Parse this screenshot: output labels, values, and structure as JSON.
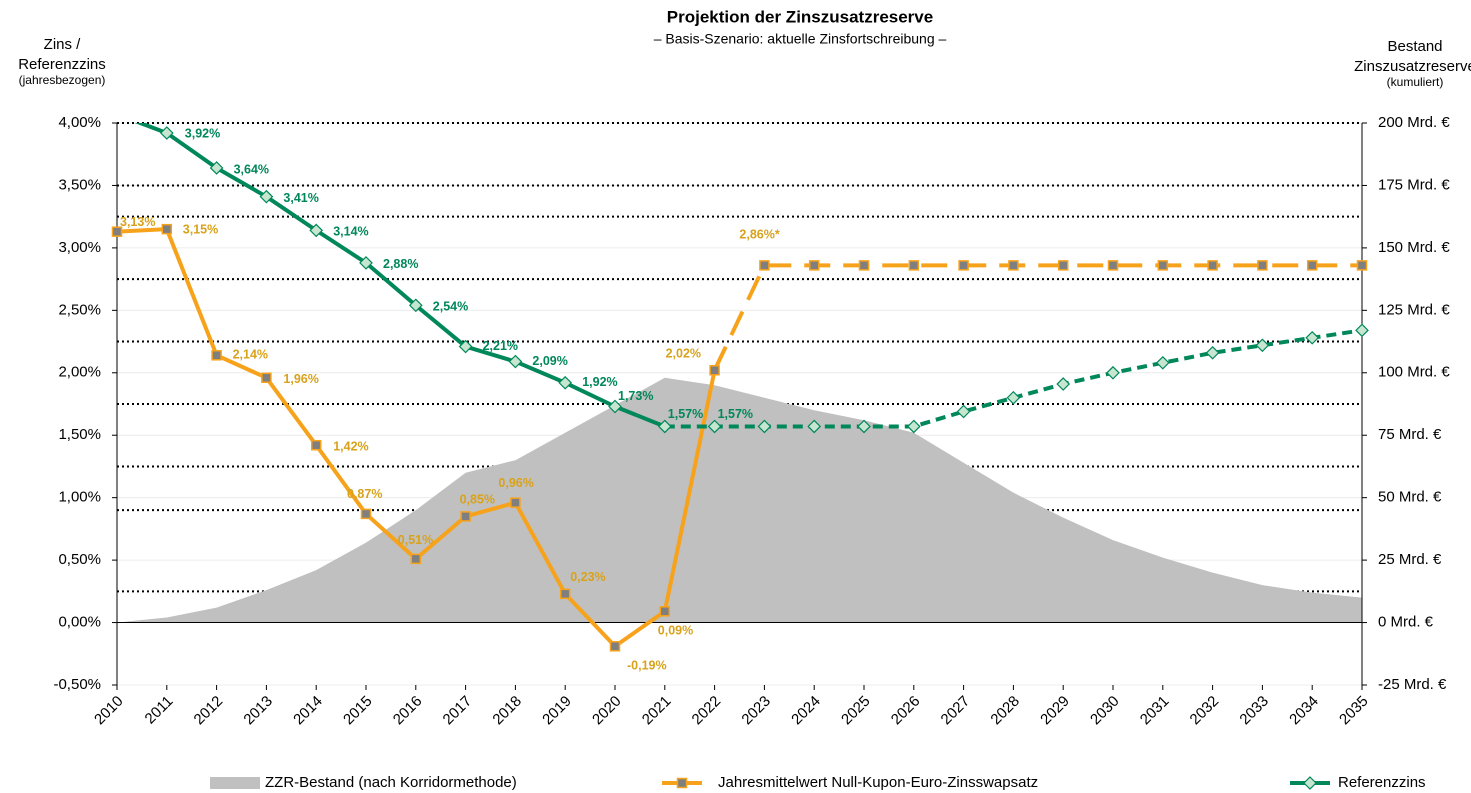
{
  "chart_data": {
    "type": "combo",
    "title": "Projektion der Zinszusatzreserve",
    "subtitle": "–  Basis-Szenario: aktuelle Zinsfortschreibung –",
    "y_axis_label": [
      "Zins /",
      "Referenzzins",
      "(jahresbezogen)"
    ],
    "y2_axis_label": [
      "Bestand",
      "Zinszusatzreserve",
      "(kumuliert)"
    ],
    "categories": [
      "2010",
      "2011",
      "2012",
      "2013",
      "2014",
      "2015",
      "2016",
      "2017",
      "2018",
      "2019",
      "2020",
      "2021",
      "2022",
      "2023",
      "2024",
      "2025",
      "2026",
      "2027",
      "2028",
      "2029",
      "2030",
      "2031",
      "2032",
      "2033",
      "2034",
      "2035"
    ],
    "ylim": [
      -0.5,
      4.0
    ],
    "yticks": [
      {
        "value": -0.5,
        "label": "-0,50%"
      },
      {
        "value": 0,
        "label": "0,00%"
      },
      {
        "value": 0.5,
        "label": "0,50%"
      },
      {
        "value": 1.0,
        "label": "1,00%"
      },
      {
        "value": 1.5,
        "label": "1,50%"
      },
      {
        "value": 2.0,
        "label": "2,00%"
      },
      {
        "value": 2.5,
        "label": "2,50%"
      },
      {
        "value": 3.0,
        "label": "3,00%"
      },
      {
        "value": 3.5,
        "label": "3,50%"
      },
      {
        "value": 4.0,
        "label": "4,00%"
      }
    ],
    "y2lim": [
      -25,
      200
    ],
    "y2ticks": [
      {
        "value": -25,
        "label": "-25 Mrd. €"
      },
      {
        "value": 0,
        "label": "0 Mrd. €"
      },
      {
        "value": 25,
        "label": "25 Mrd. €"
      },
      {
        "value": 50,
        "label": "50 Mrd. €"
      },
      {
        "value": 75,
        "label": "75 Mrd. €"
      },
      {
        "value": 100,
        "label": "100 Mrd. €"
      },
      {
        "value": 125,
        "label": "125 Mrd. €"
      },
      {
        "value": 150,
        "label": "150 Mrd. €"
      },
      {
        "value": 175,
        "label": "175 Mrd. €"
      },
      {
        "value": 200,
        "label": "200 Mrd. €"
      }
    ],
    "grid": true,
    "dotted_lines": [
      4.0,
      3.5,
      3.25,
      2.75,
      2.25,
      1.75,
      1.25,
      0.9,
      0.25
    ],
    "legend": "bottom",
    "series": [
      {
        "name": "ZZR-Bestand (nach Korridormethode)",
        "type": "area",
        "axis": "y2",
        "color": "#c0c0c0",
        "values": [
          0,
          2,
          6,
          13,
          21,
          32,
          45,
          60,
          65,
          76,
          87,
          98,
          95,
          90,
          85,
          81,
          76,
          64,
          52,
          42,
          33,
          26,
          20,
          15,
          12,
          10
        ]
      },
      {
        "name": "Jahresmittelwert Null-Kupon-Euro-Zinsswapsatz",
        "type": "line",
        "color": "#f7a21b",
        "label_color": "#d9a21b",
        "dash_from": 12,
        "values": [
          3.13,
          3.15,
          2.14,
          1.96,
          1.42,
          0.87,
          0.51,
          0.85,
          0.96,
          0.23,
          -0.19,
          0.09,
          2.02,
          2.86,
          2.86,
          2.86,
          2.86,
          2.86,
          2.86,
          2.86,
          2.86,
          2.86,
          2.86,
          2.86,
          2.86,
          2.86
        ],
        "value_labels": [
          "3,13%",
          "3,15%",
          "2,14%",
          "1,96%",
          "1,42%",
          "0,87%",
          "0,51%",
          "0,85%",
          "0,96%",
          "0,23%",
          "-0,19%",
          "0,09%",
          "2,02%",
          "2,86%*",
          null,
          null,
          null,
          null,
          null,
          null,
          null,
          null,
          null,
          null,
          null,
          null
        ]
      },
      {
        "name": "Referenzzins",
        "type": "line",
        "color": "#00875a",
        "label_color": "#00875a",
        "dash_from": 11,
        "values": [
          4.07,
          3.92,
          3.64,
          3.41,
          3.14,
          2.88,
          2.54,
          2.21,
          2.09,
          1.92,
          1.73,
          1.57,
          1.57,
          1.57,
          1.57,
          1.57,
          1.57,
          1.69,
          1.8,
          1.91,
          2.0,
          2.08,
          2.16,
          2.22,
          2.28,
          2.34
        ],
        "value_labels": [
          null,
          "3,92%",
          "3,64%",
          "3,41%",
          "3,14%",
          "2,88%",
          "2,54%",
          "2,21%",
          "2,09%",
          "1,92%",
          "1,73%",
          "1,57%",
          "1,57%",
          null,
          null,
          null,
          null,
          null,
          null,
          null,
          null,
          null,
          null,
          null,
          null,
          null
        ]
      }
    ]
  }
}
